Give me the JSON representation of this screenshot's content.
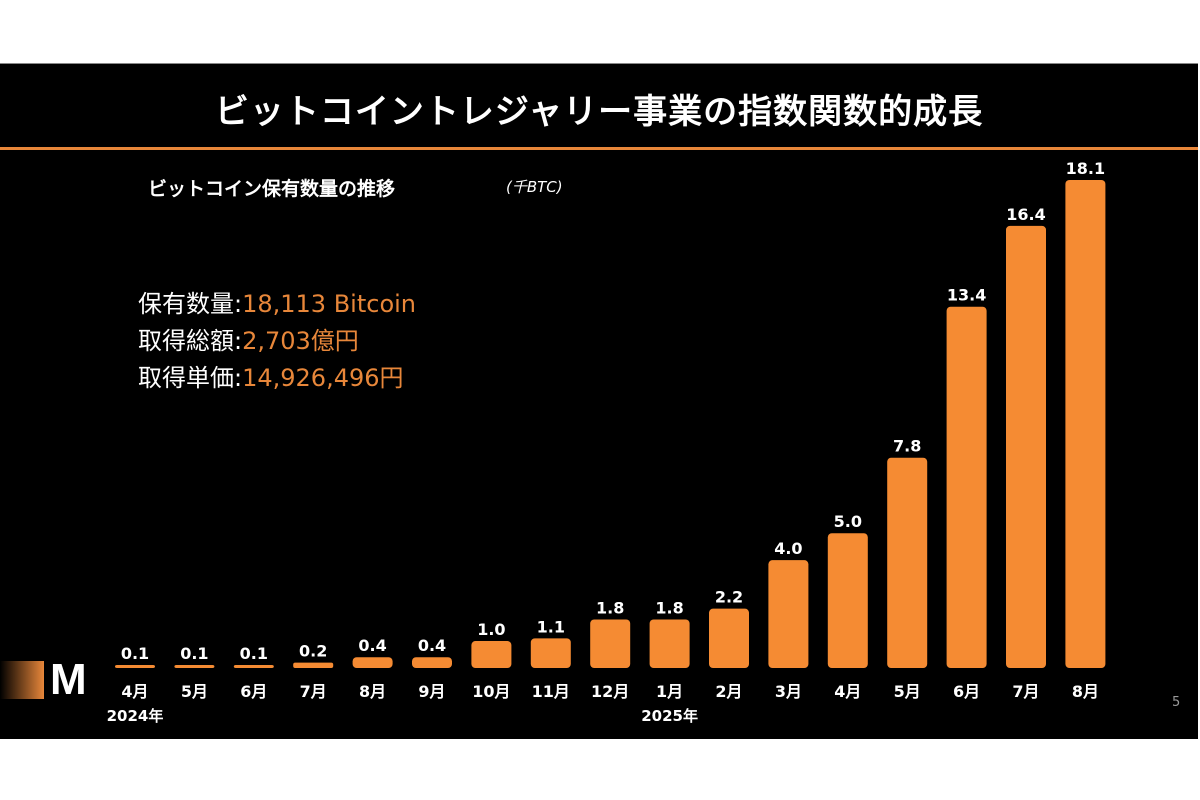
{
  "slide": {
    "title": "ビットコイントレジャリー事業の指数関数的成長",
    "page_number": "5",
    "accent_color": "#e8873a",
    "background_color": "#000000",
    "logo": {
      "letter": "M"
    }
  },
  "stats": [
    {
      "label": "保有数量",
      "colon": ":",
      "value": "18,113 Bitcoin"
    },
    {
      "label": "取得総額",
      "colon": ":",
      "value": "2,703億円"
    },
    {
      "label": "取得単価",
      "colon": ":",
      "value": "14,926,496円"
    }
  ],
  "chart_data": {
    "type": "bar",
    "title": "ビットコイン保有数量の推移",
    "unit": "(千BTC)",
    "xlabel": "",
    "ylabel": "",
    "categories": [
      "4月",
      "5月",
      "6月",
      "7月",
      "8月",
      "9月",
      "10月",
      "11月",
      "12月",
      "1月",
      "2月",
      "3月",
      "4月",
      "5月",
      "6月",
      "7月",
      "8月"
    ],
    "values": [
      0.1,
      0.1,
      0.1,
      0.2,
      0.4,
      0.4,
      1.0,
      1.1,
      1.8,
      1.8,
      2.2,
      4.0,
      5.0,
      7.8,
      13.4,
      16.4,
      18.1
    ],
    "data_labels": [
      "0.1",
      "0.1",
      "0.1",
      "0.2",
      "0.4",
      "0.4",
      "1.0",
      "1.1",
      "1.8",
      "1.8",
      "2.2",
      "4.0",
      "5.0",
      "7.8",
      "13.4",
      "16.4",
      "18.1"
    ],
    "year_labels": [
      {
        "label": "2024年",
        "category_index": 0
      },
      {
        "label": "2025年",
        "category_index": 9
      }
    ],
    "ylim": [
      0,
      18.1
    ],
    "grid": false,
    "legend": "none",
    "bar_color": "#f58b33"
  }
}
